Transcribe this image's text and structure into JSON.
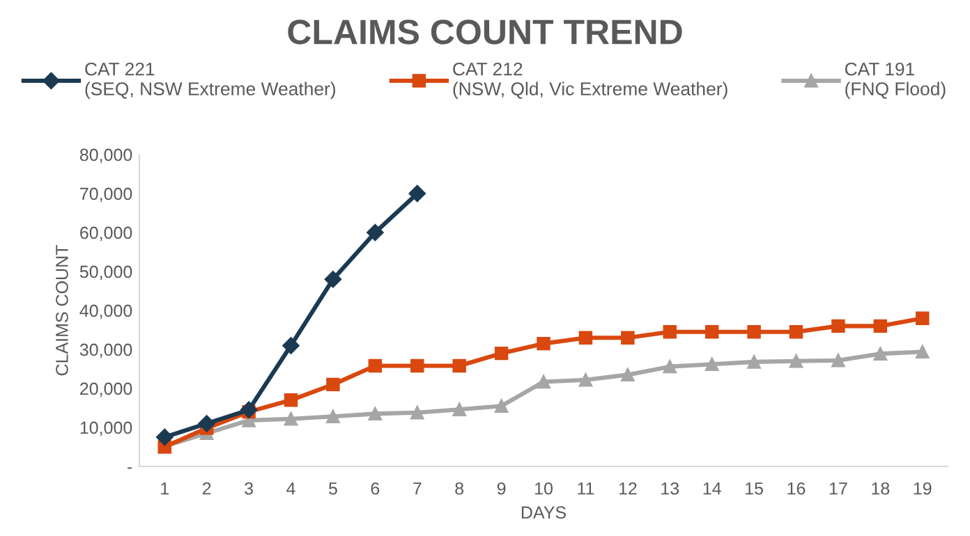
{
  "chart_data": {
    "type": "line",
    "title": "CLAIMS COUNT TREND",
    "xlabel": "DAYS",
    "ylabel": "CLAIMS COUNT",
    "categories": [
      "1",
      "2",
      "3",
      "4",
      "5",
      "6",
      "7",
      "8",
      "9",
      "10",
      "11",
      "12",
      "13",
      "14",
      "15",
      "16",
      "17",
      "18",
      "19"
    ],
    "series": [
      {
        "name": "CAT 221\n(SEQ, NSW Extreme Weather)",
        "color": "#1b3a52",
        "marker": "diamond",
        "values": [
          7500,
          11000,
          14500,
          31000,
          48000,
          60000,
          70000,
          null,
          null,
          null,
          null,
          null,
          null,
          null,
          null,
          null,
          null,
          null,
          null
        ]
      },
      {
        "name": "CAT 212\n(NSW, Qld, Vic Extreme Weather)",
        "color": "#d9480f",
        "marker": "square",
        "values": [
          5000,
          9800,
          14000,
          17000,
          21000,
          25800,
          25800,
          25800,
          29000,
          31500,
          33000,
          33000,
          34500,
          34500,
          34500,
          34500,
          36000,
          36000,
          38000
        ]
      },
      {
        "name": "CAT 191\n(FNQ Flood)",
        "color": "#a6a6a6",
        "marker": "triangle",
        "values": [
          5200,
          8500,
          11800,
          12200,
          12800,
          13500,
          13800,
          14600,
          15500,
          21700,
          22200,
          23500,
          25600,
          26200,
          26800,
          27000,
          27200,
          28900,
          29400
        ]
      }
    ],
    "ylim": [
      0,
      80000
    ],
    "yticks": [
      {
        "value": 0,
        "label": "-"
      },
      {
        "value": 10000,
        "label": "10,000"
      },
      {
        "value": 20000,
        "label": "20,000"
      },
      {
        "value": 30000,
        "label": "30,000"
      },
      {
        "value": 40000,
        "label": "40,000"
      },
      {
        "value": 50000,
        "label": "50,000"
      },
      {
        "value": 60000,
        "label": "60,000"
      },
      {
        "value": 70000,
        "label": "70,000"
      },
      {
        "value": 80000,
        "label": "80,000"
      }
    ],
    "grid": false,
    "legend": "top",
    "line_style": "solid"
  }
}
